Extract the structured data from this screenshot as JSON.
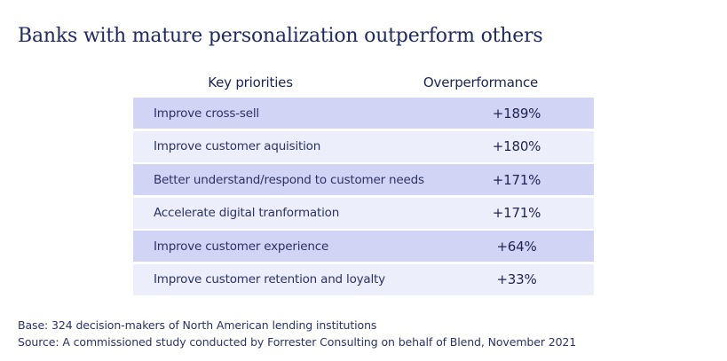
{
  "title": "Banks with mature personalization outperform others",
  "table": {
    "headers": {
      "priority": "Key priorities",
      "value": "Overperformance"
    },
    "rows": [
      {
        "label": "Improve cross-sell",
        "value": "+189%",
        "shade": "dark"
      },
      {
        "label": "Improve customer aquisition",
        "value": "+180%",
        "shade": "light"
      },
      {
        "label": "Better understand/respond to customer needs",
        "value": "+171%",
        "shade": "dark"
      },
      {
        "label": "Accelerate digital tranformation",
        "value": "+171%",
        "shade": "light"
      },
      {
        "label": "Improve customer experience",
        "value": "+64%",
        "shade": "dark"
      },
      {
        "label": "Improve customer retention and loyalty",
        "value": "+33%",
        "shade": "light"
      }
    ],
    "colors": {
      "dark_row": "#d1d4f5",
      "light_row": "#edeefb",
      "text": "#1f2a63"
    }
  },
  "footnotes": {
    "base": "Base: 324 decision-makers of North American lending institutions",
    "source": "Source: A commissioned study conducted by Forrester Consulting on behalf of Blend, November 2021"
  }
}
